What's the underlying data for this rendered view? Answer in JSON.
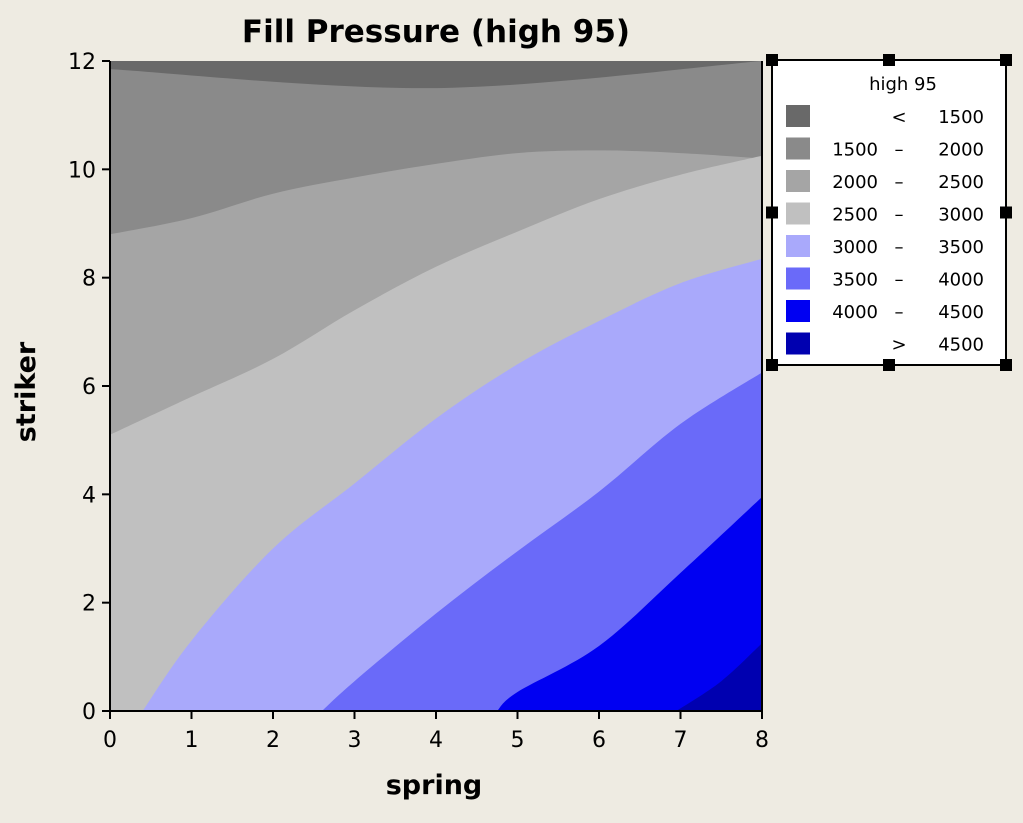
{
  "chart_data": {
    "type": "contour",
    "title": "Fill Pressure (high 95)",
    "xlabel": "spring",
    "ylabel": "striker",
    "xlim": [
      0,
      8
    ],
    "ylim": [
      0,
      12
    ],
    "x_ticks": [
      "0",
      "1",
      "2",
      "3",
      "4",
      "5",
      "6",
      "7",
      "8"
    ],
    "y_ticks": [
      "0",
      "2",
      "4",
      "6",
      "8",
      "10",
      "12"
    ],
    "legend": {
      "title": "high 95",
      "placement": "right",
      "entries": [
        {
          "low": "",
          "op": "<",
          "high": "1500",
          "color": "#696969"
        },
        {
          "low": "1500",
          "op": "–",
          "high": "2000",
          "color": "#8a8a8a"
        },
        {
          "low": "2000",
          "op": "–",
          "high": "2500",
          "color": "#a5a5a5"
        },
        {
          "low": "2500",
          "op": "–",
          "high": "3000",
          "color": "#c0c0c0"
        },
        {
          "low": "3000",
          "op": "–",
          "high": "3500",
          "color": "#a9a9fb"
        },
        {
          "low": "3500",
          "op": "–",
          "high": "4000",
          "color": "#6a6af9"
        },
        {
          "low": "4000",
          "op": "–",
          "high": "4500",
          "color": "#0000f2"
        },
        {
          "low": "",
          "op": ">",
          "high": "4500",
          "color": "#0000b0"
        }
      ]
    },
    "contour_boundaries": [
      {
        "level": 1500,
        "points": [
          [
            0,
            11.85
          ],
          [
            4,
            11.5
          ],
          [
            8,
            12
          ]
        ]
      },
      {
        "level": 2000,
        "points": [
          [
            0,
            8.8
          ],
          [
            1,
            9.1
          ],
          [
            2,
            9.55
          ],
          [
            3,
            9.85
          ],
          [
            4,
            10.1
          ],
          [
            5,
            10.3
          ],
          [
            6,
            10.35
          ],
          [
            7,
            10.3
          ],
          [
            8,
            10.2
          ]
        ]
      },
      {
        "level": 2500,
        "points": [
          [
            0,
            5.1
          ],
          [
            1,
            5.8
          ],
          [
            2,
            6.5
          ],
          [
            3,
            7.4
          ],
          [
            4,
            8.2
          ],
          [
            5,
            8.85
          ],
          [
            6,
            9.45
          ],
          [
            7,
            9.9
          ],
          [
            8,
            10.25
          ]
        ]
      },
      {
        "level": 3000,
        "points": [
          [
            0.4,
            0
          ],
          [
            1,
            1.3
          ],
          [
            2,
            3.0
          ],
          [
            3,
            4.2
          ],
          [
            4,
            5.4
          ],
          [
            5,
            6.4
          ],
          [
            6,
            7.2
          ],
          [
            7,
            7.9
          ],
          [
            8,
            8.35
          ]
        ]
      },
      {
        "level": 3500,
        "points": [
          [
            2.6,
            0
          ],
          [
            3,
            0.55
          ],
          [
            4,
            1.8
          ],
          [
            5,
            2.95
          ],
          [
            6,
            4.05
          ],
          [
            7,
            5.3
          ],
          [
            8,
            6.25
          ]
        ]
      },
      {
        "level": 4000,
        "points": [
          [
            4.75,
            0
          ],
          [
            5,
            0.35
          ],
          [
            6,
            1.2
          ],
          [
            7,
            2.55
          ],
          [
            8,
            3.95
          ]
        ]
      },
      {
        "level": 4500,
        "points": [
          [
            6.95,
            0
          ],
          [
            7.5,
            0.55
          ],
          [
            8,
            1.25
          ]
        ]
      }
    ]
  }
}
